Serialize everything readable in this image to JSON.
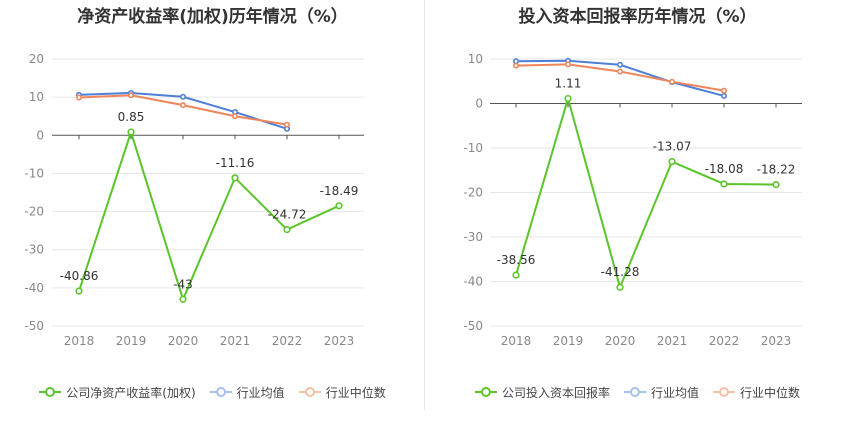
{
  "chart_data": [
    {
      "type": "line",
      "title": "净资产收益率(加权)历年情况（%）",
      "categories": [
        "2018",
        "2019",
        "2020",
        "2021",
        "2022",
        "2023"
      ],
      "ylim": [
        -50,
        20
      ],
      "yticks": [
        "20",
        "10",
        "0",
        "-10",
        "-20",
        "-30",
        "-40",
        "-50"
      ],
      "grid": true,
      "legend_position": "bottom",
      "series": [
        {
          "name": "公司净资产收益率(加权)",
          "color": "#5ac42a",
          "values": [
            -40.86,
            0.85,
            -43,
            -11.16,
            -24.72,
            -18.49
          ],
          "labels": [
            "-40.86",
            "0.85",
            "-43",
            "-11.16",
            "-24.72",
            "-18.49"
          ]
        },
        {
          "name": "行业均值",
          "color": "#4e7fd8",
          "values": [
            10.6,
            11.1,
            10.1,
            6.1,
            1.7,
            null
          ]
        },
        {
          "name": "行业中位数",
          "color": "#f0855a",
          "values": [
            9.9,
            10.5,
            7.9,
            5.0,
            2.8,
            null
          ]
        }
      ]
    },
    {
      "type": "line",
      "title": "投入资本回报率历年情况（%）",
      "categories": [
        "2018",
        "2019",
        "2020",
        "2021",
        "2022",
        "2023"
      ],
      "ylim": [
        -50,
        10
      ],
      "yticks": [
        "10",
        "0",
        "-10",
        "-20",
        "-30",
        "-40",
        "-50"
      ],
      "grid": true,
      "legend_position": "bottom",
      "series": [
        {
          "name": "公司投入资本回报率",
          "color": "#5ac42a",
          "values": [
            -38.56,
            1.11,
            -41.28,
            -13.07,
            -18.08,
            -18.22
          ],
          "labels": [
            "-38.56",
            "1.11",
            "-41.28",
            "-13.07",
            "-18.08",
            "-18.22"
          ]
        },
        {
          "name": "行业均值",
          "color": "#4e7fd8",
          "values": [
            9.5,
            9.6,
            8.7,
            4.8,
            1.7,
            null
          ]
        },
        {
          "name": "行业中位数",
          "color": "#f0855a",
          "values": [
            8.5,
            8.8,
            7.2,
            4.9,
            2.9,
            null
          ]
        }
      ]
    }
  ]
}
